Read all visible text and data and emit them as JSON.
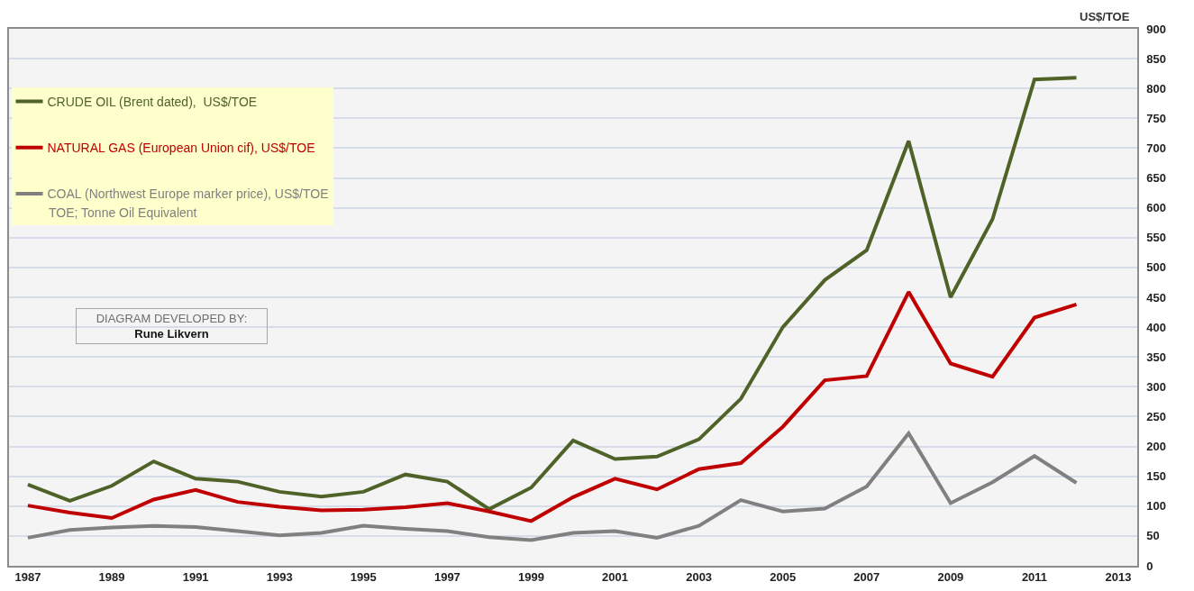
{
  "chart_data": {
    "type": "line",
    "ylabel": "US$/TOE",
    "x": [
      1987,
      1988,
      1989,
      1990,
      1991,
      1992,
      1993,
      1994,
      1995,
      1996,
      1997,
      1998,
      1999,
      2000,
      2001,
      2002,
      2003,
      2004,
      2005,
      2006,
      2007,
      2008,
      2009,
      2010,
      2011,
      2012
    ],
    "series": [
      {
        "name": "CRUDE OIL (Brent dated),  US$/TOE",
        "color": "#4f6228",
        "values": [
          136,
          109,
          134,
          175,
          146,
          141,
          124,
          116,
          124,
          153,
          141,
          95,
          131,
          210,
          179,
          183,
          212,
          280,
          400,
          479,
          529,
          712,
          450,
          581,
          815,
          818
        ]
      },
      {
        "name": "NATURAL GAS (European Union cif), US$/TOE",
        "color": "#c00000",
        "values": [
          101,
          89,
          80,
          111,
          127,
          107,
          99,
          93,
          94,
          98,
          105,
          91,
          75,
          115,
          146,
          128,
          162,
          172,
          233,
          311,
          318,
          459,
          339,
          317,
          416,
          438
        ]
      },
      {
        "name": "COAL (Northwest Europe marker price), US$/TOE",
        "color": "#808080",
        "values": [
          47,
          60,
          64,
          67,
          65,
          58,
          51,
          55,
          67,
          62,
          58,
          48,
          43,
          55,
          58,
          47,
          67,
          110,
          91,
          96,
          133,
          222,
          105,
          140,
          184,
          139
        ]
      }
    ],
    "xlim": [
      1986.55,
      2013.45
    ],
    "xticks": [
      1987,
      1989,
      1991,
      1993,
      1995,
      1997,
      1999,
      2001,
      2003,
      2005,
      2007,
      2009,
      2011,
      2013
    ],
    "ylim": [
      0,
      900
    ],
    "yticks": [
      0,
      50,
      100,
      150,
      200,
      250,
      300,
      350,
      400,
      450,
      500,
      550,
      600,
      650,
      700,
      750,
      800,
      850,
      900
    ],
    "annotations": [
      "TOE; Tonne Oil Equivalent",
      "DIAGRAM DEVELOPED BY:\nRune Likvern"
    ],
    "grid": "y",
    "legend": "top left",
    "marker": "none",
    "line_style": "solid"
  }
}
